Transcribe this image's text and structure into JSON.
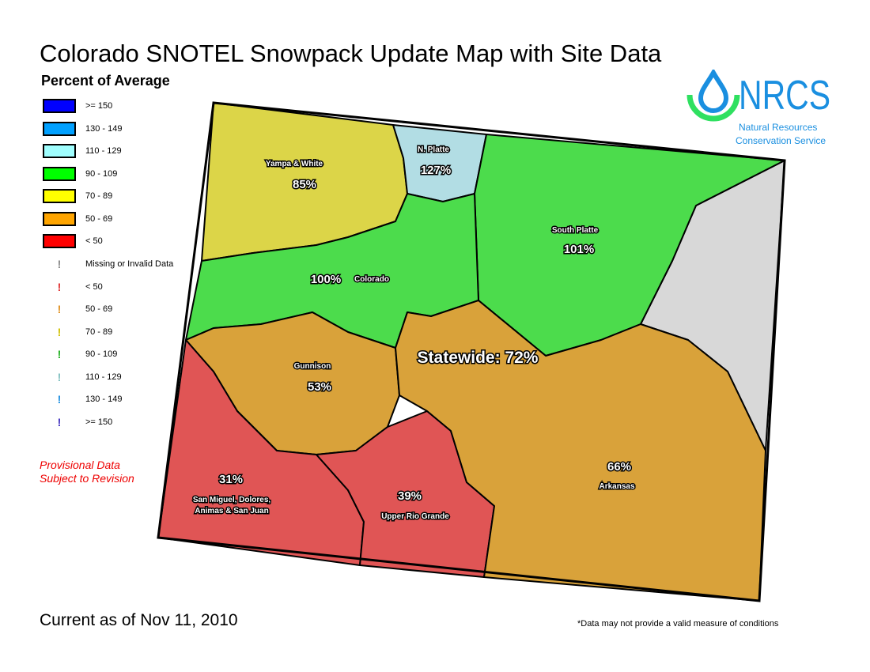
{
  "title": "Colorado SNOTEL Snowpack Update Map with Site Data",
  "legend": {
    "title": "Percent of Average",
    "classes": [
      {
        "label": ">= 150",
        "color": "#0000ff"
      },
      {
        "label": "130 - 149",
        "color": "#00a0ff"
      },
      {
        "label": "110 - 129",
        "color": "#a0ffff"
      },
      {
        "label": "90 - 109",
        "color": "#00ff00"
      },
      {
        "label": "70 - 89",
        "color": "#ffff00"
      },
      {
        "label": "50 - 69",
        "color": "#ffa500"
      },
      {
        "label": "< 50",
        "color": "#ff0000"
      }
    ],
    "site_markers": [
      {
        "label": "Missing or Invalid Data",
        "color": "#888888"
      },
      {
        "label": "< 50",
        "color": "#e03030"
      },
      {
        "label": "50 - 69",
        "color": "#e09020"
      },
      {
        "label": "70 - 89",
        "color": "#d0c000"
      },
      {
        "label": "90 - 109",
        "color": "#20b020"
      },
      {
        "label": "110 - 129",
        "color": "#80c0c0"
      },
      {
        "label": "130 - 149",
        "color": "#2090e0"
      },
      {
        "label": ">= 150",
        "color": "#4030c0"
      }
    ]
  },
  "provisional": [
    "Provisional Data",
    "Subject to Revision"
  ],
  "logo": {
    "acronym": "NRCS",
    "line1": "Natural Resources",
    "line2": "Conservation Service"
  },
  "basins": [
    {
      "name": "Yampa & White",
      "percent": "85%",
      "color": "#dcd548"
    },
    {
      "name": "N. Platte",
      "percent": "127%",
      "color": "#b2dde4"
    },
    {
      "name": "South Platte",
      "percent": "101%",
      "color": "#4cdc4c"
    },
    {
      "name": "Colorado",
      "percent": "100%",
      "color": "#4cdc4c"
    },
    {
      "name": "Gunnison",
      "percent": "53%",
      "color": "#d9a23a"
    },
    {
      "name": "San Miguel, Dolores,",
      "name2": "Animas & San Juan",
      "percent": "31%",
      "color": "#e05555"
    },
    {
      "name": "Upper Rio Grande",
      "percent": "39%",
      "color": "#e05555"
    },
    {
      "name": "Arkansas",
      "percent": "66%",
      "color": "#d9a23a"
    }
  ],
  "no_data_color": "#d8d8d8",
  "statewide": "Statewide: 72%",
  "as_of": "Current as of Nov 11, 2010",
  "note": "*Data may not provide a valid measure of conditions"
}
